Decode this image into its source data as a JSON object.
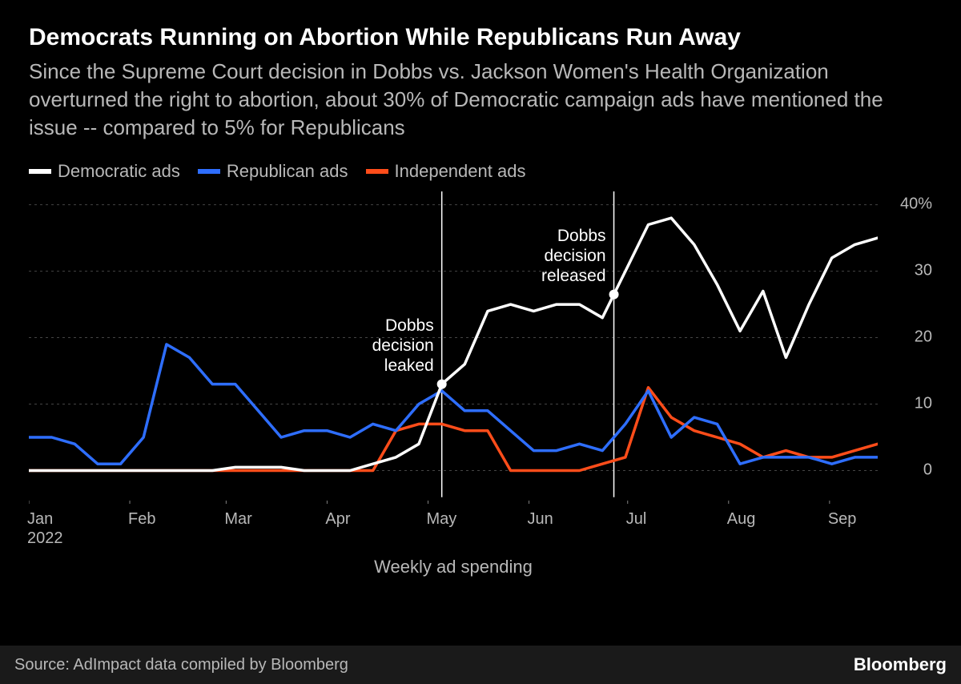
{
  "title": "Democrats Running on Abortion While Republicans Run Away",
  "subtitle": "Since the Supreme Court decision in Dobbs vs. Jackson Women's Health Organization overturned the right to abortion, about 30% of Democratic campaign ads have mentioned the issue -- compared to 5% for Republicans",
  "legend": [
    {
      "label": "Democratic ads",
      "color": "#ffffff"
    },
    {
      "label": "Republican ads",
      "color": "#2e6eff"
    },
    {
      "label": "Independent ads",
      "color": "#ff4d1a"
    }
  ],
  "chart": {
    "type": "line",
    "background_color": "#000000",
    "grid_color": "#444444",
    "axis_color": "#808080",
    "text_color": "#b8b8b8",
    "ylim": [
      -5,
      42
    ],
    "yticks": [
      0,
      10,
      20,
      30,
      40
    ],
    "ytick_labels": [
      "0",
      "10",
      "20",
      "30",
      "40%"
    ],
    "x_count_weeks": 38,
    "x_months": [
      {
        "label": "Jan",
        "sublabel": "2022",
        "week_index": 0
      },
      {
        "label": "Feb",
        "week_index": 4.4
      },
      {
        "label": "Mar",
        "week_index": 8.6
      },
      {
        "label": "Apr",
        "week_index": 13.0
      },
      {
        "label": "May",
        "week_index": 17.4
      },
      {
        "label": "Jun",
        "week_index": 21.8
      },
      {
        "label": "Jul",
        "week_index": 26.1
      },
      {
        "label": "Aug",
        "week_index": 30.5
      },
      {
        "label": "Sep",
        "week_index": 34.9
      }
    ],
    "x_axis_title": "Weekly ad spending",
    "line_width": 3.5,
    "series": {
      "democratic": {
        "color": "#ffffff",
        "values": [
          0,
          0,
          0,
          0,
          0,
          0,
          0,
          0,
          0,
          0.5,
          0.5,
          0.5,
          0,
          0,
          0,
          1,
          2,
          4,
          13,
          16,
          24,
          25,
          24,
          25,
          25,
          23,
          30,
          37,
          38,
          34,
          28,
          21,
          27,
          17,
          25,
          32,
          34,
          35
        ]
      },
      "republican": {
        "color": "#2e6eff",
        "values": [
          5,
          5,
          4,
          1,
          1,
          5,
          19,
          17,
          13,
          13,
          9,
          5,
          6,
          6,
          5,
          7,
          6,
          10,
          12,
          9,
          9,
          6,
          3,
          3,
          4,
          3,
          7,
          12,
          5,
          8,
          7,
          1,
          2,
          2,
          2,
          1,
          2,
          2
        ]
      },
      "independent": {
        "color": "#ff4d1a",
        "values": [
          0,
          0,
          0,
          0,
          0,
          0,
          0,
          0,
          0,
          0,
          0,
          0,
          0,
          0,
          0,
          0,
          6,
          7,
          7,
          6,
          6,
          0,
          0,
          0,
          0,
          1,
          2,
          12.5,
          8,
          6,
          5,
          4,
          2,
          3,
          2,
          2,
          3,
          4
        ]
      }
    },
    "event_markers": [
      {
        "week_index": 18,
        "label_lines": [
          "Dobbs",
          "decision",
          "leaked"
        ],
        "label_side": "left",
        "dot_series": "democratic"
      },
      {
        "week_index": 25.5,
        "label_lines": [
          "Dobbs",
          "decision",
          "released"
        ],
        "label_side": "left",
        "dot_series": "democratic"
      }
    ]
  },
  "source": "Source: AdImpact data compiled by Bloomberg",
  "brand": "Bloomberg"
}
